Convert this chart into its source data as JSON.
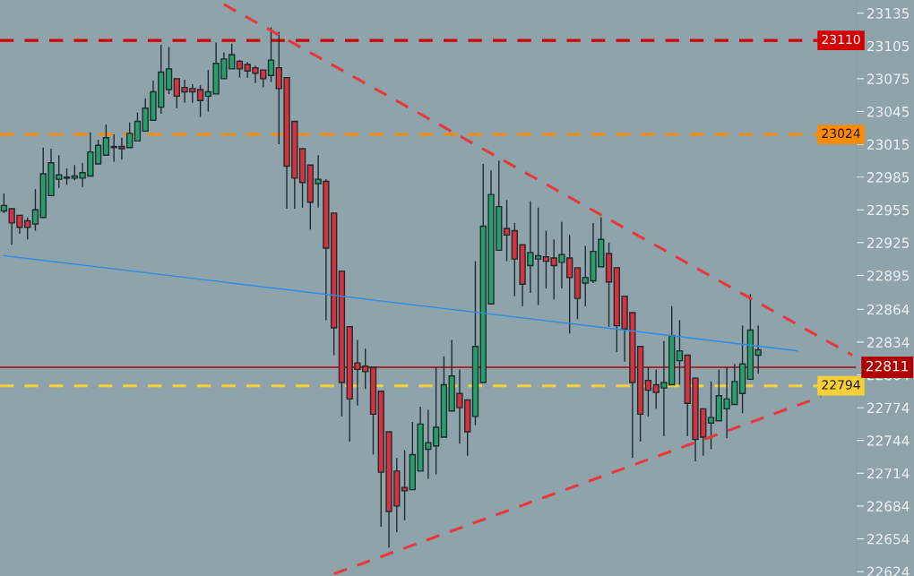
{
  "chart_data": {
    "type": "candlestick",
    "categories": [
      null,
      null,
      null,
      null,
      null,
      null,
      null,
      null,
      null,
      null,
      null,
      null,
      null,
      null,
      null,
      null,
      null,
      null,
      null,
      null,
      null,
      null,
      null,
      null,
      null,
      null,
      null,
      null,
      null,
      null,
      null,
      null,
      null,
      null,
      null,
      null,
      null,
      null,
      null,
      null,
      null,
      null,
      null,
      null,
      null,
      null,
      null,
      null,
      null,
      null,
      null,
      null,
      null,
      null,
      null,
      null,
      null,
      null,
      null,
      null,
      null,
      null,
      null,
      null,
      null,
      null,
      null,
      null,
      null,
      null,
      null,
      null,
      null,
      null,
      null,
      null,
      null,
      null,
      null,
      null,
      null,
      null,
      null,
      null,
      null,
      null,
      null,
      null,
      null,
      null,
      null,
      null,
      null,
      null,
      null,
      null,
      null,
      null,
      null,
      null,
      null,
      null,
      null,
      null,
      null,
      null,
      null,
      null,
      null
    ],
    "ohlc": [
      [
        22954,
        22970,
        22952,
        22959
      ],
      [
        22956,
        22956,
        22923,
        22943
      ],
      [
        22950,
        22950,
        22933,
        22939
      ],
      [
        22945,
        22948,
        22928,
        22939
      ],
      [
        22942,
        22974,
        22936,
        22955
      ],
      [
        22948,
        23012,
        22948,
        22988
      ],
      [
        22968,
        23011,
        22968,
        22998
      ],
      [
        22983,
        23005,
        22975,
        22987
      ],
      [
        22985,
        22993,
        22978,
        22984
      ],
      [
        22984,
        22996,
        22982,
        22986
      ],
      [
        22984,
        22998,
        22976,
        22989
      ],
      [
        22986,
        23026,
        22986,
        23008
      ],
      [
        22997,
        23019,
        22997,
        23014
      ],
      [
        23005,
        23033,
        23005,
        23021
      ],
      [
        23013,
        23024,
        22999,
        23012
      ],
      [
        23013,
        23021,
        23001,
        23011
      ],
      [
        23012,
        23035,
        23012,
        23025
      ],
      [
        23018,
        23044,
        23018,
        23036
      ],
      [
        23027,
        23057,
        23027,
        23048
      ],
      [
        23037,
        23073,
        23037,
        23063
      ],
      [
        23049,
        23106,
        23043,
        23081
      ],
      [
        23065,
        23104,
        23061,
        23084
      ],
      [
        23075,
        23075,
        23048,
        23059
      ],
      [
        23067,
        23074,
        23053,
        23063
      ],
      [
        23066,
        23070,
        23053,
        23063
      ],
      [
        23065,
        23069,
        23040,
        23055
      ],
      [
        23059,
        23083,
        23045,
        23063
      ],
      [
        23061,
        23108,
        23061,
        23089
      ],
      [
        23075,
        23099,
        23075,
        23093
      ],
      [
        23084,
        23107,
        23084,
        23097
      ],
      [
        23091,
        23092,
        23076,
        23084
      ],
      [
        23088,
        23090,
        23076,
        23082
      ],
      [
        23085,
        23087,
        23071,
        23080
      ],
      [
        23083,
        23083,
        23067,
        23075
      ],
      [
        23078,
        23122,
        23072,
        23092
      ],
      [
        23085,
        23118,
        23015,
        23066
      ],
      [
        23076,
        23076,
        22956,
        22995
      ],
      [
        23036,
        23036,
        22956,
        22984
      ],
      [
        23011,
        23011,
        22957,
        22980
      ],
      [
        22996,
        22996,
        22937,
        22962
      ],
      [
        22979,
        23005,
        22957,
        22983
      ],
      [
        22981,
        22983,
        22854,
        22920
      ],
      [
        22952,
        22952,
        22822,
        22847
      ],
      [
        22899,
        22899,
        22766,
        22797
      ],
      [
        22848,
        22848,
        22743,
        22782
      ],
      [
        22815,
        22836,
        22776,
        22809
      ],
      [
        22812,
        22828,
        22791,
        22807
      ],
      [
        22811,
        22811,
        22731,
        22768
      ],
      [
        22789,
        22789,
        22665,
        22715
      ],
      [
        22752,
        22752,
        22646,
        22679
      ],
      [
        22716,
        22728,
        22660,
        22684
      ],
      [
        22701,
        22735,
        22671,
        22698
      ],
      [
        22699,
        22761,
        22699,
        22731
      ],
      [
        22716,
        22775,
        22716,
        22759
      ],
      [
        22736,
        22772,
        22709,
        22742
      ],
      [
        22739,
        22811,
        22713,
        22756
      ],
      [
        22747,
        22821,
        22747,
        22795
      ],
      [
        22771,
        22836,
        22771,
        22803
      ],
      [
        22787,
        22809,
        22741,
        22774
      ],
      [
        22781,
        22781,
        22730,
        22752
      ],
      [
        22766,
        22908,
        22758,
        22830
      ],
      [
        22797,
        22997,
        22797,
        22940
      ],
      [
        22869,
        22991,
        22869,
        22969
      ],
      [
        22918,
        23000,
        22918,
        22958
      ],
      [
        22938,
        22964,
        22908,
        22932
      ],
      [
        22936,
        22943,
        22876,
        22910
      ],
      [
        22923,
        22923,
        22867,
        22887
      ],
      [
        22904,
        22963,
        22879,
        22916
      ],
      [
        22910,
        22957,
        22868,
        22913
      ],
      [
        22912,
        22936,
        22883,
        22908
      ],
      [
        22911,
        22928,
        22873,
        22904
      ],
      [
        22907,
        22944,
        22883,
        22914
      ],
      [
        22911,
        22932,
        22842,
        22893
      ],
      [
        22902,
        22902,
        22855,
        22874
      ],
      [
        22888,
        22922,
        22867,
        22893
      ],
      [
        22890,
        22943,
        22888,
        22917
      ],
      [
        22903,
        22948,
        22903,
        22928
      ],
      [
        22915,
        22925,
        22848,
        22889
      ],
      [
        22902,
        22902,
        22825,
        22849
      ],
      [
        22876,
        22876,
        22816,
        22846
      ],
      [
        22861,
        22861,
        22728,
        22797
      ],
      [
        22830,
        22830,
        22743,
        22768
      ],
      [
        22799,
        22811,
        22766,
        22790
      ],
      [
        22795,
        22809,
        22773,
        22788
      ],
      [
        22792,
        22835,
        22748,
        22797
      ],
      [
        22795,
        22867,
        22795,
        22840
      ],
      [
        22817,
        22854,
        22795,
        22826
      ],
      [
        22822,
        22822,
        22748,
        22778
      ],
      [
        22801,
        22801,
        22725,
        22745
      ],
      [
        22773,
        22773,
        22730,
        22747
      ],
      [
        22760,
        22798,
        22736,
        22765
      ],
      [
        22762,
        22809,
        22762,
        22785
      ],
      [
        22773,
        22811,
        22746,
        22782
      ],
      [
        22777,
        22814,
        22777,
        22798
      ],
      [
        22787,
        22849,
        22769,
        22814
      ],
      [
        22800,
        22878,
        22800,
        22845
      ],
      [
        22822,
        22849,
        22805,
        22827
      ],
      null,
      null,
      null,
      null,
      null,
      null,
      null,
      null,
      null,
      null,
      null,
      null
    ],
    "series": [
      {
        "type": "line",
        "values": [
          null,
          null,
          null,
          null,
          null,
          null,
          null,
          null,
          null,
          null,
          null,
          null,
          null,
          null,
          null,
          null,
          null,
          null,
          null,
          null,
          null,
          null,
          null,
          null,
          null,
          null,
          null,
          null,
          23143,
          null,
          null,
          null,
          null,
          null,
          null,
          null,
          null,
          null,
          null,
          null,
          null,
          null,
          null,
          null,
          null,
          null,
          null,
          null,
          null,
          null,
          null,
          null,
          null,
          null,
          null,
          null,
          null,
          null,
          null,
          null,
          null,
          null,
          null,
          null,
          null,
          null,
          null,
          null,
          null,
          null,
          null,
          null,
          null,
          null,
          null,
          null,
          null,
          null,
          null,
          null,
          null,
          null,
          null,
          null,
          null,
          null,
          null,
          null,
          null,
          null,
          null,
          null,
          null,
          null,
          null,
          null,
          null,
          null,
          null,
          null,
          null,
          null,
          null,
          null,
          null,
          null,
          null,
          null,
          22822
        ],
        "color": "#e8393a",
        "line_style": "dashed"
      },
      {
        "type": "line",
        "values": [
          null,
          null,
          null,
          null,
          null,
          null,
          null,
          null,
          null,
          null,
          null,
          null,
          null,
          null,
          null,
          null,
          null,
          null,
          null,
          null,
          null,
          null,
          null,
          null,
          null,
          null,
          null,
          null,
          null,
          null,
          null,
          null,
          null,
          null,
          null,
          null,
          null,
          null,
          null,
          null,
          null,
          null,
          22622,
          null,
          null,
          null,
          null,
          null,
          null,
          null,
          null,
          null,
          null,
          null,
          null,
          null,
          null,
          null,
          null,
          null,
          null,
          null,
          null,
          null,
          null,
          null,
          null,
          null,
          null,
          null,
          null,
          null,
          null,
          null,
          null,
          null,
          null,
          null,
          null,
          null,
          null,
          null,
          null,
          null,
          null,
          null,
          null,
          null,
          null,
          null,
          null,
          null,
          null,
          null,
          null,
          null,
          null,
          null,
          null,
          null,
          null,
          null,
          null,
          null,
          22784,
          null,
          null,
          null,
          null
        ],
        "color": "#e8393a",
        "line_style": "dashed"
      },
      {
        "type": "line",
        "values": [
          22913,
          null,
          null,
          null,
          null,
          null,
          null,
          null,
          null,
          null,
          null,
          null,
          null,
          null,
          null,
          null,
          null,
          null,
          null,
          null,
          null,
          null,
          null,
          null,
          null,
          null,
          null,
          null,
          null,
          null,
          null,
          null,
          null,
          null,
          null,
          null,
          null,
          null,
          null,
          null,
          null,
          null,
          null,
          null,
          null,
          null,
          null,
          null,
          null,
          null,
          null,
          null,
          null,
          null,
          null,
          null,
          null,
          null,
          null,
          null,
          null,
          null,
          null,
          null,
          null,
          null,
          null,
          null,
          null,
          null,
          null,
          null,
          null,
          null,
          null,
          null,
          null,
          null,
          null,
          null,
          null,
          null,
          null,
          null,
          null,
          null,
          null,
          null,
          null,
          null,
          null,
          null,
          null,
          null,
          null,
          null,
          null,
          null,
          null,
          null,
          null,
          22826,
          null,
          null,
          null,
          null,
          null,
          null,
          null
        ],
        "color": "#2a8cf0",
        "line_style": "solid"
      }
    ],
    "ref_lines": [
      {
        "axis": "y",
        "value": 23110,
        "label": "23110",
        "color": "#d40000",
        "line_style": "dashed"
      },
      {
        "axis": "y",
        "value": 23024,
        "label": "23024",
        "color": "#ff8a00",
        "line_style": "dashed"
      },
      {
        "axis": "y",
        "value": 22794,
        "label": "22794",
        "color": "#f7d038",
        "line_style": "dashed"
      },
      {
        "axis": "y",
        "value": 22811,
        "label": "22811",
        "color": "#b00000",
        "line_style": "solid"
      }
    ],
    "ylim": [
      22620,
      23147
    ],
    "yticks": [
      23135,
      23105,
      23075,
      23045,
      23015,
      22985,
      22955,
      22925,
      22895,
      22864,
      22834,
      22804,
      22774,
      22744,
      22714,
      22684,
      22654,
      22624
    ],
    "tick_labels": "y"
  }
}
